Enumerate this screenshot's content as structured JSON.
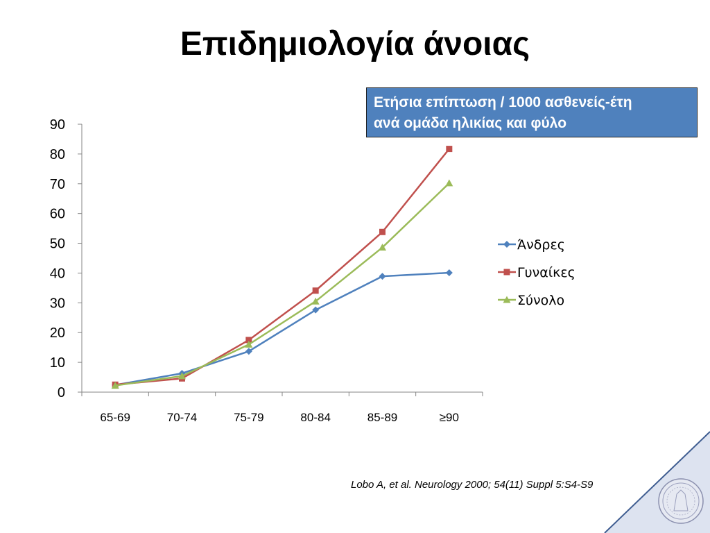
{
  "slide": {
    "title": "Επιδημιολογία άνοιας",
    "annotation_line1": "Ετήσια επίπτωση / 1000 ασθενείς-έτη",
    "annotation_line2": "ανά ομάδα ηλικίας και φύλο",
    "citation": "Lobo A, et al. Neurology 2000; 54(11) Suppl 5:S4-S9",
    "annotation_color": "#4f81bd",
    "corner_logo": "university-seal-icon"
  },
  "chart_data": {
    "type": "line",
    "categories": [
      "65-69",
      "70-74",
      "75-79",
      "80-84",
      "85-89",
      "≥90"
    ],
    "ylim": [
      0,
      90
    ],
    "yticks": [
      0,
      10,
      20,
      30,
      40,
      50,
      60,
      70,
      80,
      90
    ],
    "grid": false,
    "legend_position": "right",
    "series": [
      {
        "name": "Άνδρες",
        "values": [
          2.4,
          6.3,
          13.7,
          27.6,
          38.9,
          40.1
        ],
        "color": "#4f81bd",
        "marker": "diamond"
      },
      {
        "name": "Γυναίκες",
        "values": [
          2.5,
          4.6,
          17.5,
          34.1,
          53.8,
          81.7
        ],
        "color": "#c0504d",
        "marker": "square"
      },
      {
        "name": "Σύνολο",
        "values": [
          2.2,
          5.4,
          16.0,
          30.5,
          48.6,
          70.2
        ],
        "color": "#9bbb59",
        "marker": "triangle"
      }
    ]
  }
}
